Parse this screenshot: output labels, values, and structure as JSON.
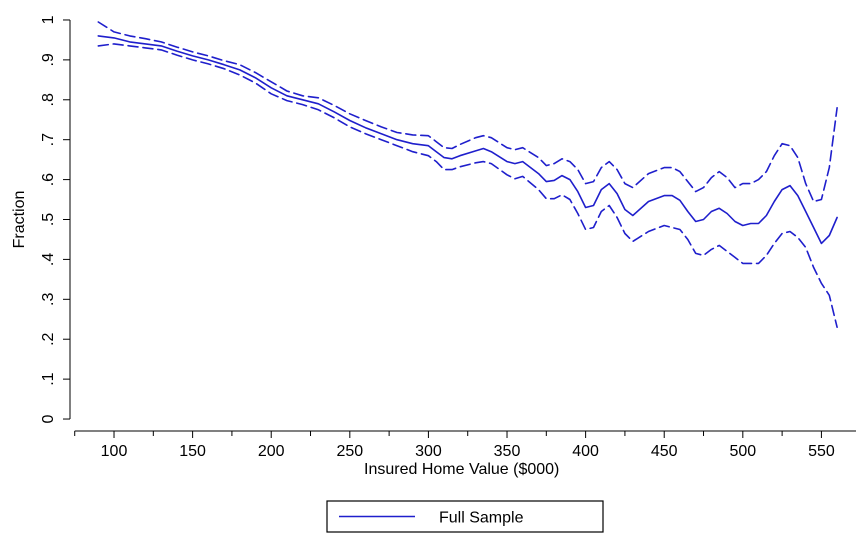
{
  "chart_data": {
    "type": "line",
    "title": "",
    "xlabel": "Insured Home Value ($000)",
    "ylabel": "Fraction",
    "xlim": [
      72,
      572
    ],
    "ylim": [
      -0.03,
      1.03
    ],
    "x_major_ticks": [
      100,
      150,
      200,
      250,
      300,
      350,
      400,
      450,
      500,
      550
    ],
    "x_minor_ticks": [
      75,
      125,
      175,
      225,
      275,
      325,
      375,
      425,
      475,
      525,
      575
    ],
    "y_ticks": [
      0,
      0.1,
      0.2,
      0.3,
      0.4,
      0.5,
      0.6,
      0.7,
      0.8,
      0.9,
      1
    ],
    "y_tick_labels": [
      "0",
      ".1",
      ".2",
      ".3",
      ".4",
      ".5",
      ".6",
      ".7",
      ".8",
      ".9",
      "1"
    ],
    "color": "#1f1fcc",
    "legend": {
      "position": "bottom-center",
      "entries": [
        "Full Sample"
      ]
    },
    "series": [
      {
        "name": "Full Sample",
        "style": "solid",
        "x": [
          90,
          100,
          110,
          120,
          130,
          140,
          150,
          160,
          170,
          180,
          190,
          200,
          210,
          220,
          230,
          240,
          250,
          260,
          270,
          280,
          290,
          300,
          305,
          310,
          315,
          320,
          330,
          335,
          340,
          350,
          355,
          360,
          370,
          375,
          380,
          385,
          390,
          395,
          400,
          405,
          410,
          415,
          420,
          425,
          430,
          440,
          450,
          455,
          460,
          465,
          470,
          475,
          480,
          485,
          490,
          495,
          500,
          505,
          510,
          515,
          520,
          525,
          530,
          535,
          540,
          545,
          550,
          555,
          560
        ],
        "y": [
          0.96,
          0.955,
          0.945,
          0.94,
          0.935,
          0.922,
          0.91,
          0.9,
          0.888,
          0.875,
          0.855,
          0.83,
          0.81,
          0.8,
          0.79,
          0.77,
          0.748,
          0.73,
          0.715,
          0.7,
          0.69,
          0.685,
          0.67,
          0.655,
          0.652,
          0.66,
          0.672,
          0.678,
          0.67,
          0.645,
          0.64,
          0.645,
          0.615,
          0.595,
          0.598,
          0.61,
          0.6,
          0.57,
          0.53,
          0.535,
          0.575,
          0.59,
          0.565,
          0.525,
          0.51,
          0.545,
          0.56,
          0.56,
          0.548,
          0.52,
          0.495,
          0.5,
          0.52,
          0.528,
          0.515,
          0.495,
          0.485,
          0.49,
          0.49,
          0.51,
          0.545,
          0.575,
          0.585,
          0.56,
          0.52,
          0.48,
          0.44,
          0.46,
          0.505
        ]
      },
      {
        "name": "",
        "style": "dashed",
        "x": [
          90,
          100,
          110,
          120,
          130,
          140,
          150,
          160,
          170,
          180,
          190,
          200,
          210,
          220,
          230,
          240,
          250,
          260,
          270,
          280,
          290,
          300,
          305,
          310,
          315,
          320,
          330,
          335,
          340,
          350,
          355,
          360,
          370,
          375,
          380,
          385,
          390,
          395,
          400,
          405,
          410,
          415,
          420,
          425,
          430,
          440,
          450,
          455,
          460,
          465,
          470,
          475,
          480,
          485,
          490,
          495,
          500,
          505,
          510,
          515,
          520,
          525,
          530,
          535,
          540,
          545,
          550,
          555,
          560
        ],
        "y": [
          0.995,
          0.97,
          0.96,
          0.953,
          0.945,
          0.932,
          0.92,
          0.91,
          0.898,
          0.888,
          0.868,
          0.845,
          0.822,
          0.81,
          0.805,
          0.786,
          0.765,
          0.748,
          0.732,
          0.718,
          0.712,
          0.71,
          0.695,
          0.68,
          0.678,
          0.688,
          0.705,
          0.71,
          0.705,
          0.68,
          0.675,
          0.68,
          0.655,
          0.635,
          0.64,
          0.652,
          0.645,
          0.625,
          0.59,
          0.595,
          0.63,
          0.645,
          0.625,
          0.59,
          0.58,
          0.615,
          0.63,
          0.63,
          0.62,
          0.595,
          0.57,
          0.58,
          0.605,
          0.62,
          0.605,
          0.58,
          0.59,
          0.59,
          0.6,
          0.62,
          0.66,
          0.69,
          0.685,
          0.655,
          0.59,
          0.545,
          0.55,
          0.63,
          0.78
        ]
      },
      {
        "name": "",
        "style": "dashed",
        "x": [
          90,
          100,
          110,
          120,
          130,
          140,
          150,
          160,
          170,
          180,
          190,
          200,
          210,
          220,
          230,
          240,
          250,
          260,
          270,
          280,
          290,
          300,
          305,
          310,
          315,
          320,
          330,
          335,
          340,
          350,
          355,
          360,
          370,
          375,
          380,
          385,
          390,
          395,
          400,
          405,
          410,
          415,
          420,
          425,
          430,
          440,
          450,
          455,
          460,
          465,
          470,
          475,
          480,
          485,
          490,
          495,
          500,
          505,
          510,
          515,
          520,
          525,
          530,
          535,
          540,
          545,
          550,
          555,
          560
        ],
        "y": [
          0.935,
          0.94,
          0.935,
          0.93,
          0.925,
          0.912,
          0.9,
          0.89,
          0.878,
          0.862,
          0.842,
          0.815,
          0.798,
          0.788,
          0.775,
          0.755,
          0.732,
          0.715,
          0.7,
          0.685,
          0.67,
          0.66,
          0.645,
          0.625,
          0.625,
          0.632,
          0.642,
          0.645,
          0.64,
          0.612,
          0.602,
          0.608,
          0.575,
          0.552,
          0.552,
          0.562,
          0.55,
          0.515,
          0.475,
          0.48,
          0.52,
          0.535,
          0.505,
          0.465,
          0.445,
          0.47,
          0.485,
          0.48,
          0.475,
          0.45,
          0.415,
          0.41,
          0.425,
          0.435,
          0.42,
          0.405,
          0.39,
          0.39,
          0.39,
          0.41,
          0.44,
          0.465,
          0.47,
          0.455,
          0.43,
          0.38,
          0.34,
          0.31,
          0.23
        ]
      }
    ]
  }
}
